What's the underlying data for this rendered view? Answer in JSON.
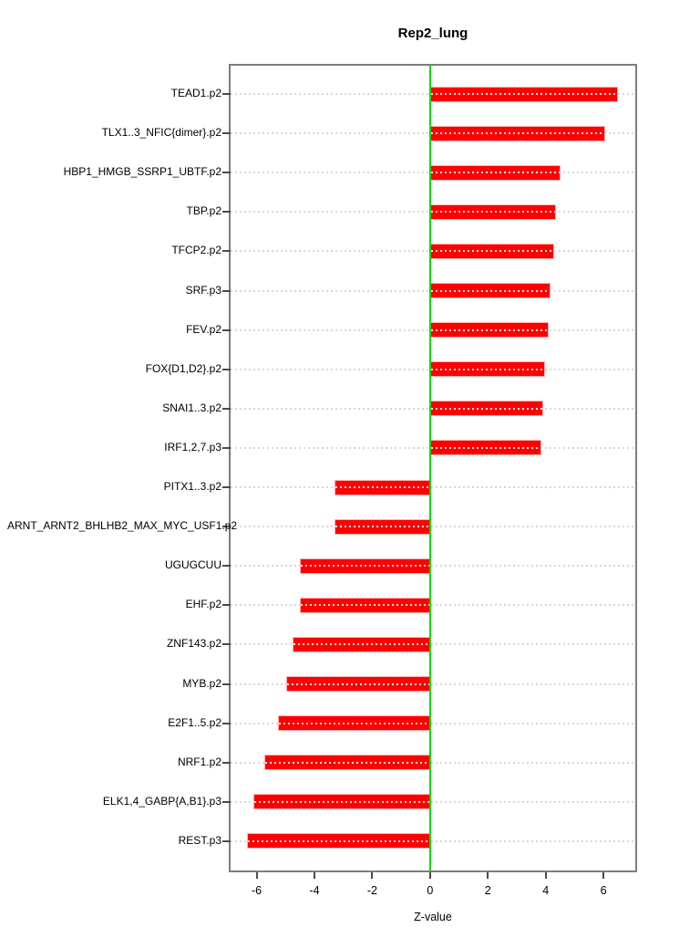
{
  "chart_data": {
    "type": "bar",
    "orientation": "horizontal",
    "title": "Rep2_lung",
    "xlabel": "Z-value",
    "categories": [
      "TEAD1.p2",
      "TLX1..3_NFIC{dimer}.p2",
      "HBP1_HMGB_SSRP1_UBTF.p2",
      "TBP.p2",
      "TFCP2.p2",
      "SRF.p3",
      "FEV.p2",
      "FOX{D1,D2}.p2",
      "SNAI1..3.p2",
      "IRF1,2,7.p3",
      "PITX1..3.p2",
      "ARNT_ARNT2_BHLHB2_MAX_MYC_USF1.p2",
      "UGUGCUU",
      "EHF.p2",
      "ZNF143.p2",
      "MYB.p2",
      "E2F1..5.p2",
      "NRF1.p2",
      "ELK1,4_GABP{A,B1}.p3",
      "REST.p3"
    ],
    "values": [
      6.5,
      6.05,
      4.51,
      4.35,
      4.29,
      4.17,
      4.12,
      3.98,
      3.9,
      3.85,
      -3.29,
      -3.32,
      -4.51,
      -4.49,
      -4.77,
      -4.99,
      -5.27,
      -5.74,
      -6.1,
      -6.34
    ],
    "xlim": [
      -6.9,
      7.1
    ],
    "x_ticks": [
      -6,
      -4,
      -2,
      0,
      2,
      4,
      6
    ],
    "grid": "dotted horizontal line per category, zero reference line",
    "legend": "none",
    "colors": {
      "bar": "#ff0000",
      "bar_border": "#ffb0b0",
      "bar_dash": "rgba(255,255,255,0.85)",
      "zero_line": "#00dd00",
      "gridline": "#d8d8d8",
      "frame": "#7d7d7d",
      "text": "#000000"
    }
  }
}
